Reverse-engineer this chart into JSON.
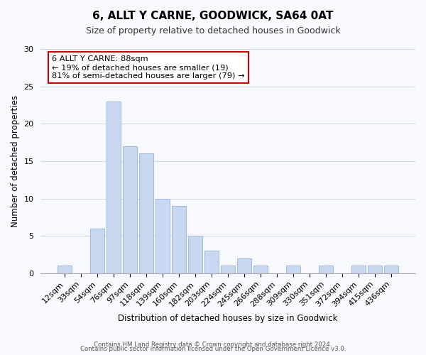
{
  "title": "6, ALLT Y CARNE, GOODWICK, SA64 0AT",
  "subtitle": "Size of property relative to detached houses in Goodwick",
  "xlabel": "Distribution of detached houses by size in Goodwick",
  "ylabel": "Number of detached properties",
  "bar_labels": [
    "12sqm",
    "33sqm",
    "54sqm",
    "76sqm",
    "97sqm",
    "118sqm",
    "139sqm",
    "160sqm",
    "182sqm",
    "203sqm",
    "224sqm",
    "245sqm",
    "266sqm",
    "288sqm",
    "309sqm",
    "330sqm",
    "351sqm",
    "372sqm",
    "394sqm",
    "415sqm",
    "436sqm"
  ],
  "bar_values": [
    1,
    0,
    6,
    23,
    17,
    16,
    10,
    9,
    5,
    3,
    1,
    2,
    1,
    0,
    1,
    0,
    1,
    0,
    1,
    1,
    1
  ],
  "bar_color": "#c8d8f0",
  "bar_edge_color": "#a0b8e0",
  "annotation_title": "6 ALLT Y CARNE: 88sqm",
  "annotation_line1": "← 19% of detached houses are smaller (19)",
  "annotation_line2": "81% of semi-detached houses are larger (79) →",
  "annotation_box_color": "#ffffff",
  "annotation_box_edge": "#cc0000",
  "ylim": [
    0,
    30
  ],
  "yticks": [
    0,
    5,
    10,
    15,
    20,
    25,
    30
  ],
  "footer1": "Contains HM Land Registry data © Crown copyright and database right 2024.",
  "footer2": "Contains public sector information licensed under the Open Government Licence v3.0.",
  "bg_color": "#f8f9ff",
  "grid_color": "#d0d8e8"
}
